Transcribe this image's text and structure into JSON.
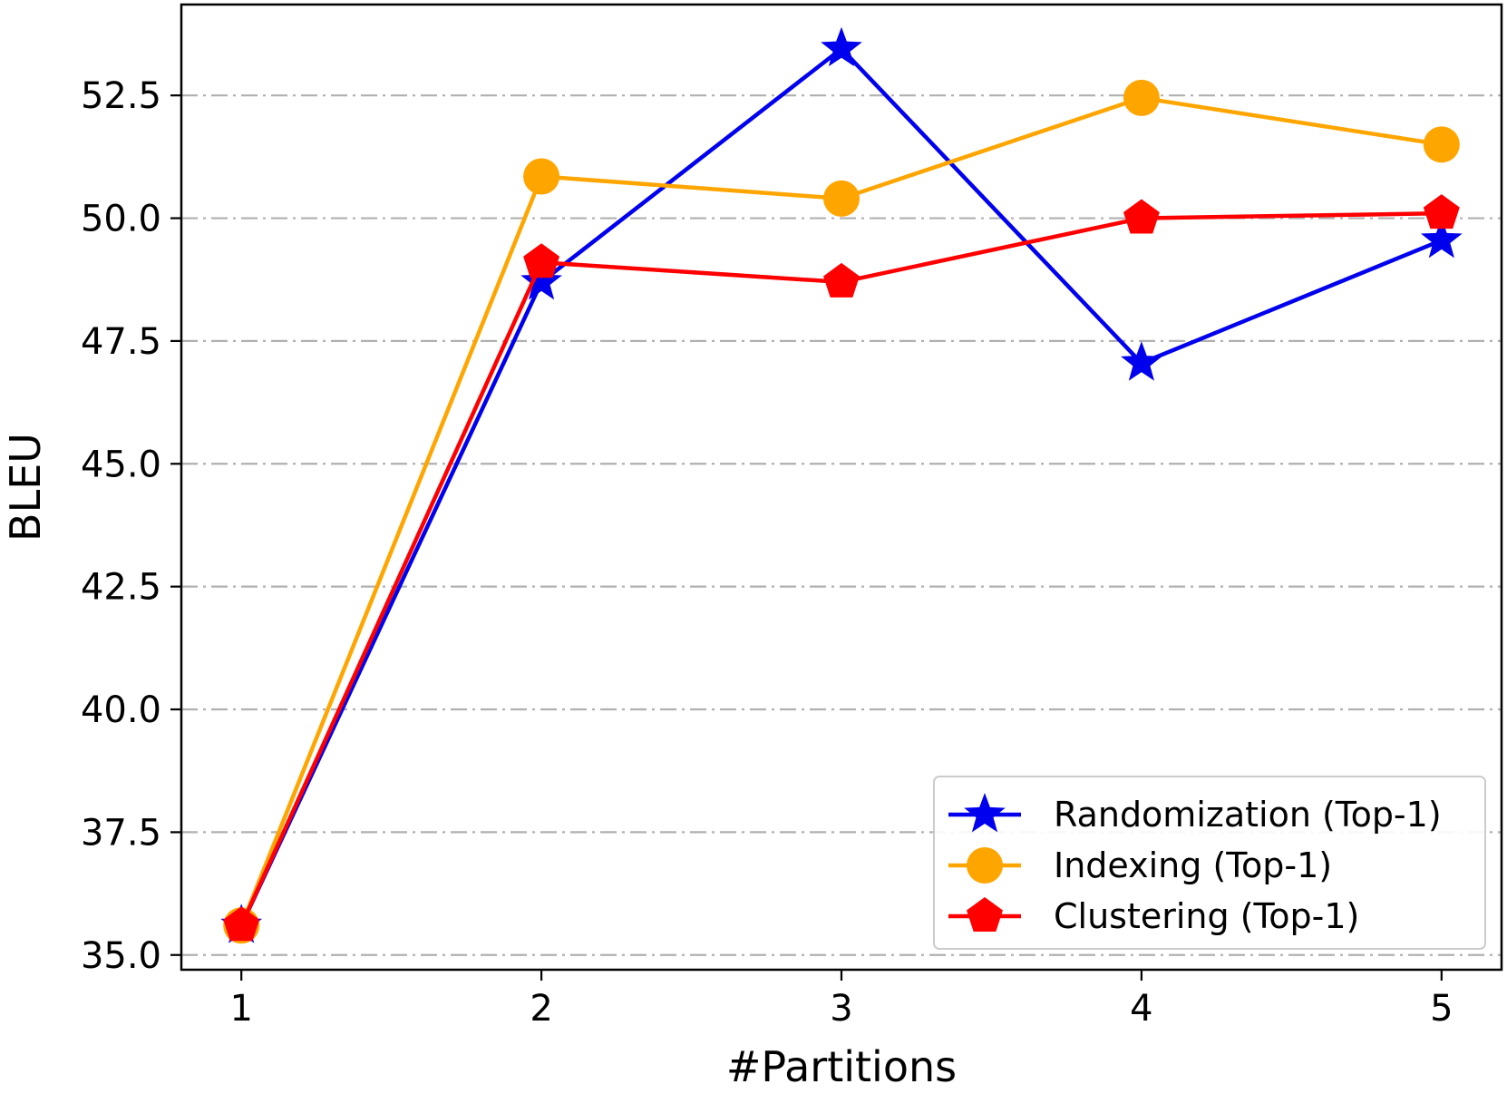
{
  "chart_data": {
    "type": "line",
    "xlabel": "#Partitions",
    "ylabel": "BLEU",
    "x": [
      1,
      2,
      3,
      4,
      5
    ],
    "x_ticks": [
      "1",
      "2",
      "3",
      "4",
      "5"
    ],
    "xlim": [
      0.8,
      5.2
    ],
    "ylim": [
      34.7,
      54.35
    ],
    "y_ticks": [
      "35.0",
      "37.5",
      "40.0",
      "42.5",
      "45.0",
      "47.5",
      "50.0",
      "52.5"
    ],
    "grid": "horizontal dash-dot",
    "legend_position": "lower-right",
    "series": [
      {
        "name": "Randomization (Top-1)",
        "color": "#0000ee",
        "marker": "star",
        "values": [
          35.6,
          48.7,
          53.45,
          47.05,
          49.55
        ]
      },
      {
        "name": "Indexing (Top-1)",
        "color": "#ffa500",
        "marker": "circle",
        "values": [
          35.6,
          50.85,
          50.4,
          52.45,
          51.5
        ]
      },
      {
        "name": "Clustering (Top-1)",
        "color": "#ff0000",
        "marker": "pentagon",
        "values": [
          35.6,
          49.1,
          48.7,
          50.0,
          50.1
        ]
      }
    ]
  }
}
